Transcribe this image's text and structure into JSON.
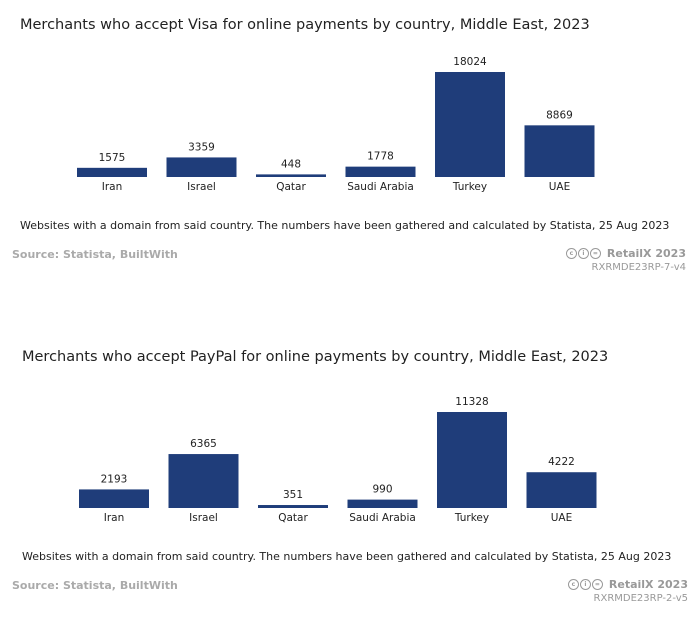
{
  "colors": {
    "bar": "#1f3d7a",
    "axis": "#1f3d7a",
    "muted": "#aaaaaa"
  },
  "chart_data": [
    {
      "type": "bar",
      "title": "Merchants who accept Visa for online payments by country, Middle East, 2023",
      "categories": [
        "Iran",
        "Israel",
        "Qatar",
        "Saudi Arabia",
        "Turkey",
        "UAE"
      ],
      "values": [
        1575,
        3359,
        448,
        1778,
        18024,
        8869
      ],
      "xlabel": "",
      "ylabel": "",
      "ylim": [
        0,
        18024
      ],
      "note": "Websites with a domain from said country. The numbers have been gathered and calculated by Statista, 25 Aug 2023",
      "source": "Source: Statista, BuiltWith",
      "brand": "RetailX 2023",
      "code": "RXRMDE23RP-7-v4"
    },
    {
      "type": "bar",
      "title": "Merchants who accept PayPal for online payments by country, Middle East, 2023",
      "categories": [
        "Iran",
        "Israel",
        "Qatar",
        "Saudi Arabia",
        "Turkey",
        "UAE"
      ],
      "values": [
        2193,
        6365,
        351,
        990,
        11328,
        4222
      ],
      "xlabel": "",
      "ylabel": "",
      "ylim": [
        0,
        11328
      ],
      "note": "Websites with a domain from said country. The numbers have been gathered and calculated by Statista, 25 Aug 2023",
      "source": "Source: Statista, BuiltWith",
      "brand": "RetailX 2023",
      "code": "RXRMDE23RP-2-v5"
    }
  ]
}
